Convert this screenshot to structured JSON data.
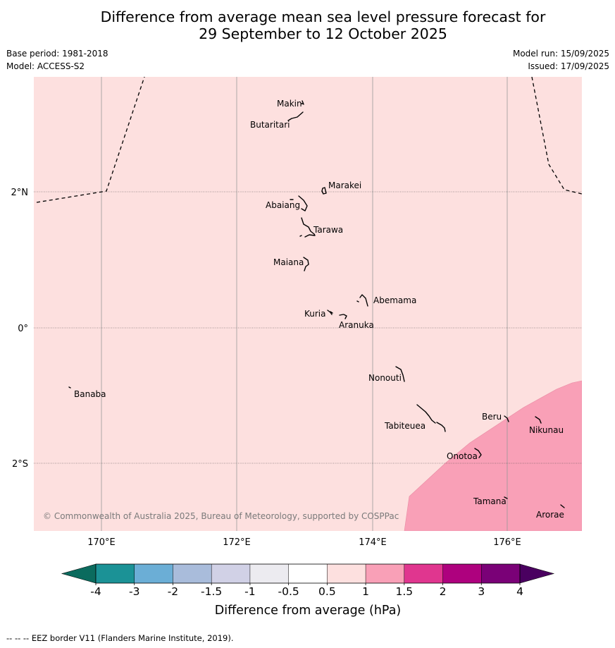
{
  "title": {
    "line1": "Difference from average mean sea level pressure forecast for",
    "line2": "29 September to 12 October 2025"
  },
  "meta": {
    "base_period": "Base period: 1981-2018",
    "model": "Model: ACCESS-S2",
    "model_run": "Model run: 15/09/2025",
    "issued": "Issued: 17/09/2025"
  },
  "map": {
    "background_color": "#fde0df",
    "high_color": "#f9a0b7",
    "lat_labels": [
      "2°N",
      "0°",
      "2°S"
    ],
    "lon_labels": [
      "170°E",
      "172°E",
      "174°E",
      "176°E"
    ],
    "islands": [
      "Makin",
      "Butaritari",
      "Marakei",
      "Abaiang",
      "Tarawa",
      "Maiana",
      "Abemama",
      "Kuria",
      "Aranuka",
      "Nonouti",
      "Banaba",
      "Tabiteuea",
      "Beru",
      "Nikunau",
      "Onotoa",
      "Tamana",
      "Arorae"
    ],
    "copyright": "© Commonwealth of Australia 2025, Bureau of Meteorology, supported by COSPPac"
  },
  "colorbar": {
    "ticks": [
      "-4",
      "-3",
      "-2",
      "-1.5",
      "-1",
      "-0.5",
      "0.5",
      "1",
      "1.5",
      "2",
      "3",
      "4"
    ],
    "colors": [
      "#1b9296",
      "#6baed6",
      "#a9bcdb",
      "#d1d1e6",
      "#ecebf0",
      "#ffffff",
      "#fde0df",
      "#f9a0b7",
      "#e0368f",
      "#ae017e",
      "#7a0177"
    ],
    "under_color": "#0b6b5e",
    "over_color": "#4a0060",
    "label": "Difference from average (hPa)"
  },
  "footnote": "-- -- -- EEZ border V11 (Flanders Marine Institute, 2019)."
}
